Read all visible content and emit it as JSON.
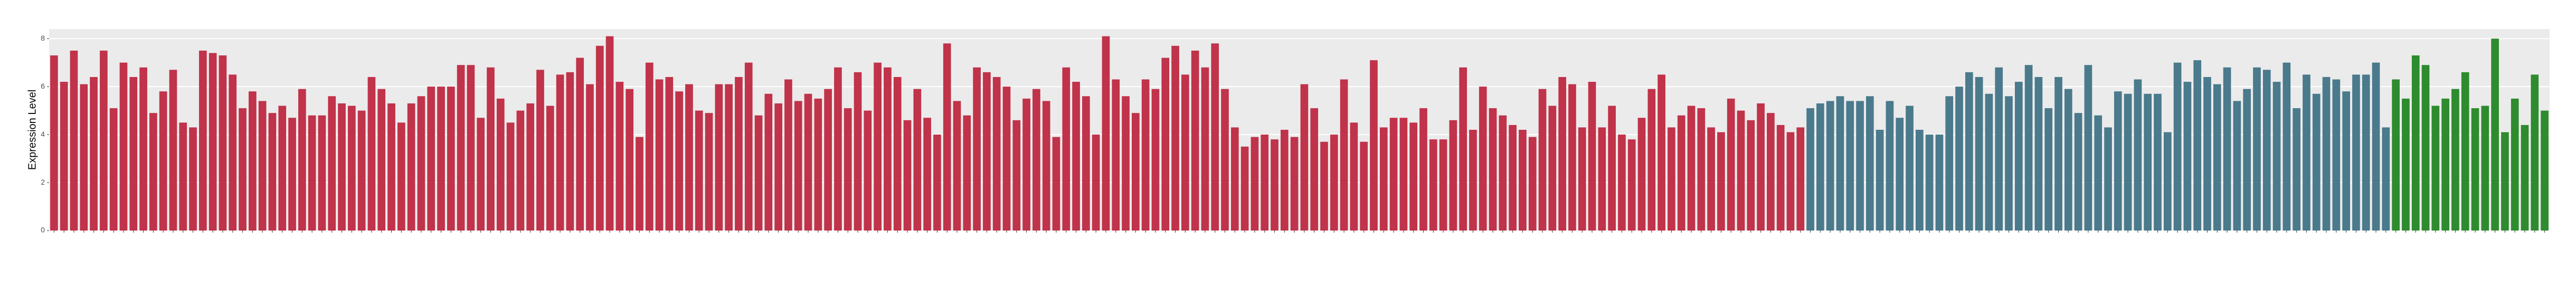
{
  "chart_data": {
    "type": "bar",
    "y_label": "Expression Level",
    "ylim": [
      0,
      8.4
    ],
    "yticks": [
      0,
      2,
      4,
      6,
      8
    ],
    "grid": true,
    "series": [
      {
        "color": "#c0334a",
        "values": [
          7.3,
          6.2,
          7.5,
          6.1,
          6.4,
          7.5,
          5.1,
          7.0,
          6.4,
          6.8,
          4.9,
          5.8,
          6.7,
          4.5,
          4.3,
          7.5,
          7.4,
          7.3,
          6.5,
          5.1,
          5.8,
          5.4,
          4.9,
          5.2,
          4.7,
          5.9,
          4.8,
          4.8,
          5.6,
          5.3,
          5.2,
          5.0,
          6.4,
          5.9,
          5.3,
          4.5,
          5.3,
          5.6,
          6.0,
          6.0,
          6.0,
          6.9,
          6.9,
          4.7,
          6.8,
          5.5,
          4.5,
          5.0,
          5.3,
          6.7,
          5.2,
          6.5,
          6.6,
          7.2,
          6.1,
          7.7,
          8.1,
          6.2,
          5.9,
          3.9,
          7.0,
          6.3,
          6.4,
          5.8,
          6.1,
          5.0,
          4.9,
          6.1,
          6.1,
          6.4,
          7.0,
          4.8,
          5.7,
          5.3,
          6.3,
          5.4,
          5.7,
          5.5,
          5.9,
          6.8,
          5.1,
          6.6,
          5.0,
          7.0,
          6.8,
          6.4,
          4.6,
          5.9,
          4.7,
          4.0,
          7.8,
          5.4,
          4.8,
          6.8,
          6.6,
          6.4,
          6.0,
          4.6,
          5.5,
          5.9,
          5.4,
          3.9,
          6.8,
          6.2,
          5.6,
          4.0,
          8.1,
          6.3,
          5.6,
          4.9,
          6.3,
          5.9,
          7.2,
          7.7,
          6.5,
          7.5,
          6.8,
          7.8,
          5.9,
          4.3,
          3.5,
          3.9,
          4.0,
          3.8,
          4.2,
          3.9,
          6.1,
          5.1,
          3.7,
          4.0,
          6.3,
          4.5,
          3.7,
          7.1,
          4.3,
          4.7,
          4.7,
          4.5,
          5.1,
          3.8,
          3.8,
          4.6,
          6.8,
          4.2,
          6.0,
          5.1,
          4.8,
          4.4,
          4.2,
          3.9,
          5.9,
          5.2,
          6.4,
          6.1,
          4.3,
          6.2,
          4.3,
          5.2,
          4.0,
          3.8,
          4.7,
          5.9,
          6.5,
          4.3,
          4.8,
          5.2,
          5.1,
          4.3,
          4.1,
          5.5,
          5.0,
          4.6,
          5.3,
          4.9,
          4.4,
          4.1,
          4.3
        ]
      },
      {
        "color": "#4a7a8c",
        "values": [
          5.1,
          5.3,
          5.4,
          5.6,
          5.4,
          5.4,
          5.6,
          4.2,
          5.4,
          4.7,
          5.2,
          4.2,
          4.0,
          4.0,
          5.6,
          6.0,
          6.6,
          6.4,
          5.7,
          6.8,
          5.6,
          6.2,
          6.9,
          6.4,
          5.1,
          6.4,
          5.9,
          4.9,
          6.9,
          4.8,
          4.3,
          5.8,
          5.7,
          6.3,
          5.7,
          5.7,
          4.1,
          7.0,
          6.2,
          7.1,
          6.4,
          6.1,
          6.8,
          5.4,
          5.9,
          6.8,
          6.7,
          6.2,
          7.0,
          5.1,
          6.5,
          5.7,
          6.4,
          6.3,
          5.8,
          6.5,
          6.5,
          7.0,
          4.3
        ]
      },
      {
        "color": "#2e8b2e",
        "values": [
          6.3,
          5.5,
          7.3,
          6.9,
          5.2,
          5.5,
          5.9,
          6.6,
          5.1,
          5.2,
          8.0,
          4.1,
          5.5,
          4.4,
          6.5,
          5.0
        ]
      }
    ]
  }
}
